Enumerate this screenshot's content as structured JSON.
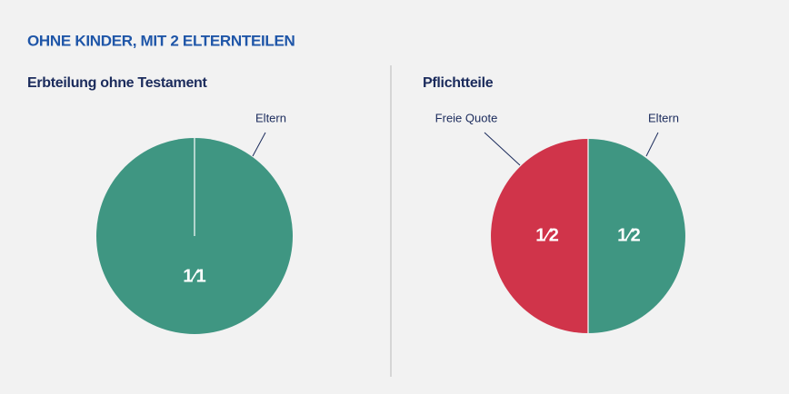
{
  "title": "OHNE KINDER, MIT 2 ELTERNTEILEN",
  "chart_data": [
    {
      "type": "pie",
      "title": "Erbteilung ohne Testament",
      "categories": [
        "Eltern"
      ],
      "values": [
        1
      ],
      "value_labels": [
        "1⁄1"
      ],
      "colors": [
        "#3f9682"
      ]
    },
    {
      "type": "pie",
      "title": "Pflichtteile",
      "categories": [
        "Eltern",
        "Freie Quote"
      ],
      "values": [
        0.5,
        0.5
      ],
      "value_labels": [
        "1⁄2",
        "1⁄2"
      ],
      "colors": [
        "#3f9682",
        "#d0344a"
      ]
    }
  ]
}
